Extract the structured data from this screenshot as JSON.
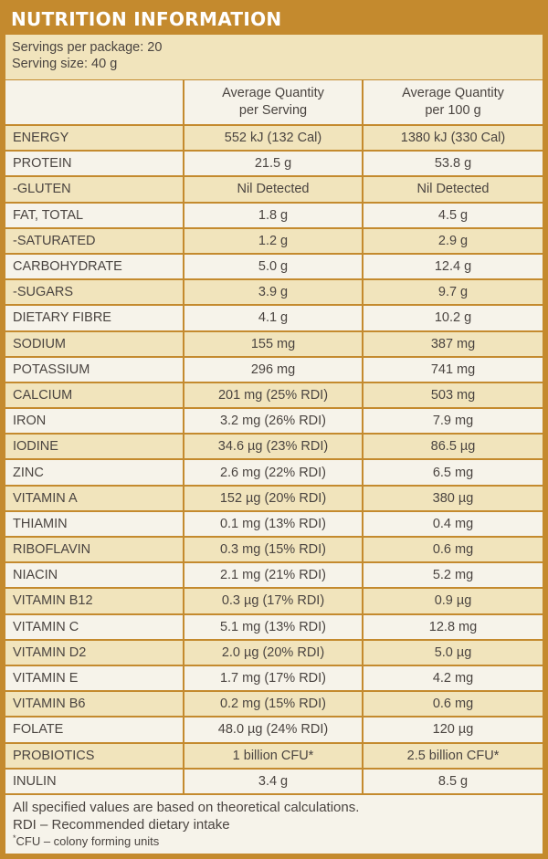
{
  "title": "NUTRITION INFORMATION",
  "servings_per_package": "Servings per package: 20",
  "serving_size": "Serving size: 40 g",
  "columns": {
    "blank": "",
    "per_serving_line1": "Average Quantity",
    "per_serving_line2": "per Serving",
    "per_100g_line1": "Average Quantity",
    "per_100g_line2": "per 100 g"
  },
  "rows": [
    {
      "name": "ENERGY",
      "per_serving": "552 kJ (132 Cal)",
      "per_100g": "1380 kJ (330 Cal)"
    },
    {
      "name": "PROTEIN",
      "per_serving": "21.5 g",
      "per_100g": "53.8 g"
    },
    {
      "name": "-GLUTEN",
      "per_serving": "Nil Detected",
      "per_100g": "Nil Detected"
    },
    {
      "name": "FAT, TOTAL",
      "per_serving": "1.8 g",
      "per_100g": "4.5 g"
    },
    {
      "name": "-SATURATED",
      "per_serving": "1.2 g",
      "per_100g": "2.9 g"
    },
    {
      "name": "CARBOHYDRATE",
      "per_serving": "5.0 g",
      "per_100g": "12.4 g"
    },
    {
      "name": "-SUGARS",
      "per_serving": "3.9 g",
      "per_100g": "9.7 g"
    },
    {
      "name": "DIETARY FIBRE",
      "per_serving": "4.1 g",
      "per_100g": "10.2 g"
    },
    {
      "name": "SODIUM",
      "per_serving": "155 mg",
      "per_100g": "387 mg"
    },
    {
      "name": "POTASSIUM",
      "per_serving": "296 mg",
      "per_100g": "741 mg"
    },
    {
      "name": "CALCIUM",
      "per_serving": "201 mg (25% RDI)",
      "per_100g": "503 mg"
    },
    {
      "name": "IRON",
      "per_serving": "3.2 mg (26% RDI)",
      "per_100g": "7.9 mg"
    },
    {
      "name": "IODINE",
      "per_serving": "34.6 µg (23% RDI)",
      "per_100g": "86.5 µg"
    },
    {
      "name": "ZINC",
      "per_serving": "2.6 mg (22% RDI)",
      "per_100g": "6.5 mg"
    },
    {
      "name": "VITAMIN A",
      "per_serving": "152 µg (20% RDI)",
      "per_100g": "380 µg"
    },
    {
      "name": "THIAMIN",
      "per_serving": "0.1 mg (13% RDI)",
      "per_100g": "0.4 mg"
    },
    {
      "name": "RIBOFLAVIN",
      "per_serving": "0.3 mg (15% RDI)",
      "per_100g": "0.6 mg"
    },
    {
      "name": "NIACIN",
      "per_serving": "2.1 mg (21% RDI)",
      "per_100g": "5.2 mg"
    },
    {
      "name": "VITAMIN B12",
      "per_serving": "0.3 µg (17% RDI)",
      "per_100g": "0.9 µg"
    },
    {
      "name": "VITAMIN C",
      "per_serving": "5.1 mg (13% RDI)",
      "per_100g": "12.8 mg"
    },
    {
      "name": "VITAMIN D2",
      "per_serving": "2.0 µg (20% RDI)",
      "per_100g": "5.0 µg"
    },
    {
      "name": "VITAMIN E",
      "per_serving": "1.7 mg (17% RDI)",
      "per_100g": "4.2 mg"
    },
    {
      "name": "VITAMIN B6",
      "per_serving": "0.2 mg (15% RDI)",
      "per_100g": "0.6 mg"
    },
    {
      "name": "FOLATE",
      "per_serving": "48.0 µg (24% RDI)",
      "per_100g": "120 µg"
    },
    {
      "name": "PROBIOTICS",
      "per_serving": "1 billion CFU*",
      "per_100g": "2.5 billion CFU*"
    },
    {
      "name": "INULIN",
      "per_serving": "3.4 g",
      "per_100g": "8.5 g"
    }
  ],
  "footer": {
    "note1": "All specified values are based on theoretical calculations.",
    "note2": "RDI – Recommended dietary intake",
    "note3_marker": "*",
    "note3": "CFU – colony forming units"
  },
  "colors": {
    "border": "#c48a2e",
    "band": "#f1e4bc",
    "cream": "#f6f3ea",
    "text": "#4a4440",
    "title": "#ffffff"
  }
}
